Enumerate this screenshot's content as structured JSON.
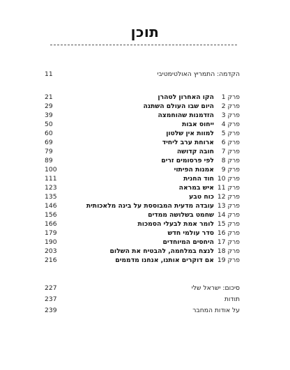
{
  "title": "תוכן",
  "intro": {
    "label": "הקדמה: התמריץ האולטימטיבי",
    "page": "11"
  },
  "chapters": [
    {
      "prefix": "פרק 1",
      "name": "הקו האחרון לטהרן",
      "page": "21"
    },
    {
      "prefix": "פרק 2",
      "name": "היום שבו העולם השתנה",
      "page": "29"
    },
    {
      "prefix": "פרק 3",
      "name": "הזדמנות שהוחמצה",
      "page": "39"
    },
    {
      "prefix": "פרק 4",
      "name": "ייחוס אבות",
      "page": "50"
    },
    {
      "prefix": "פרק 5",
      "name": "למוות אין שלטון",
      "page": "60"
    },
    {
      "prefix": "פרק 6",
      "name": "ארוחת ערב ליחיד",
      "page": "69"
    },
    {
      "prefix": "פרק 7",
      "name": "חובה קדושה",
      "page": "79"
    },
    {
      "prefix": "פרק 8",
      "name": "לפי פרסומים זרים",
      "page": "89"
    },
    {
      "prefix": "פרק 9",
      "name": "אמנות הפיתוי",
      "page": "100"
    },
    {
      "prefix": "פרק 10",
      "name": "חוד החנית",
      "page": "111"
    },
    {
      "prefix": "פרק 11",
      "name": "איש במראה",
      "page": "123"
    },
    {
      "prefix": "פרק 12",
      "name": "כוח טבע",
      "page": "135"
    },
    {
      "prefix": "פרק 13",
      "name": "עובדה מדעית המבוססת על בינה מלאכותית",
      "page": "146"
    },
    {
      "prefix": "פרק 14",
      "name": "שחמט בשלושה ממדים",
      "page": "156"
    },
    {
      "prefix": "פרק 15",
      "name": "לומר אמת לבעלי הסמכות",
      "page": "166"
    },
    {
      "prefix": "פרק 16",
      "name": "סדר עולמי חדש",
      "page": "179"
    },
    {
      "prefix": "פרק 17",
      "name": "היחסים המיוחדים",
      "page": "190"
    },
    {
      "prefix": "פרק 18",
      "name": "לנצח במלחמה, להבטיח את השלום",
      "page": "203"
    },
    {
      "prefix": "פרק 19",
      "name": "אם דוקרים אותנו, אנחנו מדממים",
      "page": "216"
    }
  ],
  "backmatter": [
    {
      "label": "סיכום: ישראל שלי",
      "page": "227"
    },
    {
      "label": "תודות",
      "page": "237"
    },
    {
      "label": "על אודות המחבר",
      "page": "239"
    }
  ]
}
